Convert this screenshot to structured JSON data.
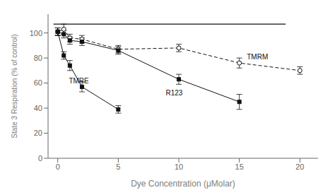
{
  "chart_data": {
    "type": "line",
    "title": "",
    "xlabel": "Dye Concentration (μMolar)",
    "ylabel": "State 3 Respiration (% of control)",
    "xlim": [
      -0.8,
      21.5
    ],
    "ylim": [
      0,
      115
    ],
    "xticks": [
      0,
      5,
      10,
      15,
      20
    ],
    "yticks": [
      0,
      20,
      40,
      60,
      80,
      100
    ],
    "grid": false,
    "series": [
      {
        "color": "#111111",
        "marker": "open_circle",
        "line_style": "dashed",
        "x": [
          0,
          0.5,
          1,
          2,
          5,
          10,
          15,
          20
        ],
        "values": [
          101,
          103,
          96,
          95,
          87,
          88,
          76,
          70
        ],
        "yerr": [
          3,
          4,
          3,
          3,
          3,
          3,
          4,
          3
        ]
      },
      {
        "color": "#111111",
        "marker": "square",
        "line_style": "solid",
        "x": [
          0,
          0.5,
          1,
          2,
          5,
          10,
          15
        ],
        "values": [
          101,
          99,
          94,
          93,
          86,
          63,
          45
        ],
        "yerr": [
          3,
          3,
          3,
          3,
          3,
          4,
          6
        ]
      },
      {
        "color": "#111111",
        "marker": "square",
        "line_style": "solid",
        "x": [
          0,
          0.5,
          1,
          2,
          5
        ],
        "values": [
          101,
          82,
          74,
          57,
          39
        ],
        "yerr": [
          3,
          3,
          4,
          4,
          3
        ]
      }
    ],
    "annotations": [
      {
        "text": "TMRM",
        "x": 15.5,
        "y": 81
      },
      {
        "text": "R123",
        "x": 8.8,
        "y": 52
      },
      {
        "text": "TMRE",
        "x": 0.8,
        "y": 62
      }
    ],
    "hline": 107
  }
}
